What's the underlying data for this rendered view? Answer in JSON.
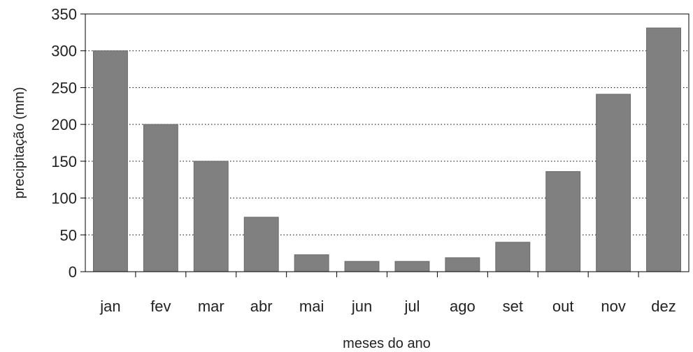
{
  "chart_data": {
    "type": "bar",
    "title": "",
    "xlabel": "meses do ano",
    "ylabel": "precipitação (mm)",
    "ylim": [
      0,
      350
    ],
    "yticks": [
      "0",
      "50",
      "100",
      "150",
      "200",
      "250",
      "300",
      "350"
    ],
    "categories": [
      "jan",
      "fev",
      "mar",
      "abr",
      "mai",
      "jun",
      "jul",
      "ago",
      "set",
      "out",
      "nov",
      "dez"
    ],
    "values": [
      300,
      200,
      150,
      74,
      23,
      14,
      14,
      19,
      40,
      136,
      241,
      331
    ],
    "grid": "horizontal dotted",
    "colors": {
      "bar": "#808080",
      "bar_edge": "#6a6a6a",
      "axis": "#000000",
      "grid": "#000000"
    }
  }
}
